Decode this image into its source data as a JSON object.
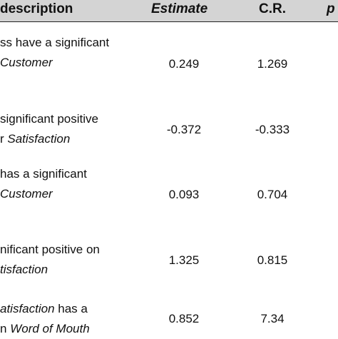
{
  "table": {
    "headers": {
      "description": "description",
      "estimate": "Estimate",
      "cr": "C.R.",
      "p": "p"
    },
    "rows": [
      {
        "line1_a": "ss have a significant",
        "line1_em": "",
        "line1_b": "",
        "line2_a": "",
        "line2_em": "Customer",
        "estimate": "0.249",
        "cr": "1.269"
      },
      {
        "line1_a": "significant positive",
        "line1_em": "",
        "line1_b": "",
        "line2_a": "r ",
        "line2_em": "Satisfaction",
        "estimate": "-0.372",
        "cr": "-0.333"
      },
      {
        "line1_a": "has a significant",
        "line1_em": "",
        "line1_b": "",
        "line2_a": "",
        "line2_em": "Customer",
        "estimate": "0.093",
        "cr": "0.704"
      },
      {
        "line1_a": "nificant positive on",
        "line1_em": "",
        "line1_b": "",
        "line2_a": "",
        "line2_em": "tisfaction",
        "estimate": "1.325",
        "cr": "0.815"
      },
      {
        "line1_a": "",
        "line1_em": "atisfaction",
        "line1_b": " has a",
        "line2_a": "n ",
        "line2_em": "Word of Mouth",
        "estimate": "0.852",
        "cr": "7.34"
      }
    ]
  }
}
